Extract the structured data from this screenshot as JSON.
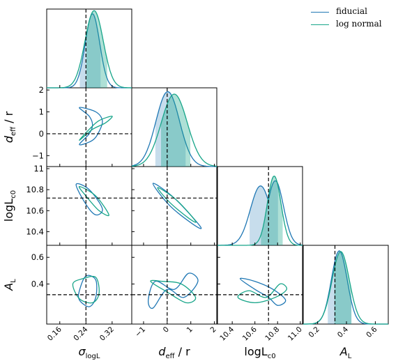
{
  "legend": {
    "items": [
      {
        "label": "fiducial",
        "color": "#1f77b4"
      },
      {
        "label": "log normal",
        "color": "#17a589"
      }
    ]
  },
  "chart_data": {
    "type": "triangle-plot",
    "params": [
      {
        "name": "sigma_logL",
        "label": "σlogL",
        "label_main": "σ",
        "label_sub": "logL",
        "lim": [
          0.12,
          0.38
        ],
        "ticks": [
          0.16,
          0.24,
          0.32
        ],
        "tick_labels": [
          "0.16",
          "0.24",
          "0.32"
        ],
        "truth": 0.24
      },
      {
        "name": "d_eff_r",
        "label": "deff / r",
        "label_main": "d",
        "label_sub": "eff",
        "label_suffix": " / r",
        "lim": [
          -1.5,
          2.1
        ],
        "ticks": [
          -1,
          0,
          1,
          2
        ],
        "tick_labels": [
          "−1",
          "0",
          "1",
          "2"
        ],
        "truth": 0
      },
      {
        "name": "logLc0",
        "label": "logLc0",
        "label_main": "logL",
        "label_sub": "c0",
        "lim": [
          10.27,
          11.02
        ],
        "ticks": [
          10.4,
          10.6,
          10.8,
          11.0
        ],
        "tick_labels": [
          "10.4",
          "10.6",
          "10.8",
          "11.0"
        ],
        "truth": 10.72
      },
      {
        "name": "A_L",
        "label": "AL",
        "label_main": "A",
        "label_sub": "L",
        "lim": [
          0.1,
          0.69
        ],
        "ticks": [
          0.2,
          0.4,
          0.6
        ],
        "tick_labels": [
          "0.2",
          "0.4",
          "0.6"
        ],
        "truth": 0.32
      }
    ],
    "y_tick_labels": {
      "d_eff_r": [
        "−1",
        "0",
        "1",
        "2"
      ],
      "logLc0": [
        "10.4",
        "10.6",
        "10.8",
        "11"
      ],
      "A_L": [
        "0.4",
        "0.6"
      ]
    },
    "series": [
      {
        "name": "fiducial",
        "color": "#1f77b4",
        "marginals": [
          {
            "center": 0.26,
            "width": 0.022,
            "peak": 0.94,
            "band": [
              0.22,
              0.285
            ]
          },
          {
            "center": 0.0,
            "width": 0.5,
            "peak": 0.95,
            "band": [
              -0.5,
              0.8
            ],
            "skew": 0.15
          },
          {
            "center": 10.65,
            "width": 0.09,
            "peak": 0.82,
            "band": [
              10.55,
              10.81
            ],
            "second": 10.78
          },
          {
            "center": 0.35,
            "width": 0.055,
            "peak": 0.93,
            "band": [
              0.27,
              0.44
            ]
          }
        ],
        "contours": [
          {
            "row": 1,
            "col": 0,
            "points": [
              [
                0.22,
                1.2
              ],
              [
                0.25,
                0.8
              ],
              [
                0.26,
                0.4
              ],
              [
                0.25,
                0.0
              ],
              [
                0.22,
                -0.5
              ],
              [
                0.26,
                -0.3
              ],
              [
                0.28,
                0.1
              ],
              [
                0.29,
                0.6
              ],
              [
                0.27,
                1.0
              ],
              [
                0.22,
                1.2
              ]
            ]
          },
          {
            "row": 2,
            "col": 0,
            "points": [
              [
                0.21,
                10.85
              ],
              [
                0.25,
                10.8
              ],
              [
                0.29,
                10.62
              ],
              [
                0.27,
                10.56
              ],
              [
                0.24,
                10.66
              ],
              [
                0.21,
                10.85
              ]
            ]
          },
          {
            "row": 2,
            "col": 1,
            "points": [
              [
                -0.6,
                10.86
              ],
              [
                0.3,
                10.72
              ],
              [
                1.4,
                10.45
              ],
              [
                1.1,
                10.47
              ],
              [
                0.1,
                10.65
              ],
              [
                -0.6,
                10.86
              ]
            ]
          },
          {
            "row": 3,
            "col": 0,
            "points": [
              [
                0.22,
                0.35
              ],
              [
                0.24,
                0.46
              ],
              [
                0.27,
                0.43
              ],
              [
                0.27,
                0.3
              ],
              [
                0.25,
                0.23
              ],
              [
                0.22,
                0.28
              ],
              [
                0.22,
                0.35
              ]
            ]
          },
          {
            "row": 3,
            "col": 1,
            "points": [
              [
                -0.8,
                0.28
              ],
              [
                -0.5,
                0.42
              ],
              [
                0.3,
                0.36
              ],
              [
                0.9,
                0.48
              ],
              [
                1.3,
                0.42
              ],
              [
                0.7,
                0.3
              ],
              [
                0.0,
                0.36
              ],
              [
                -0.6,
                0.22
              ],
              [
                -0.8,
                0.28
              ]
            ]
          },
          {
            "row": 3,
            "col": 2,
            "points": [
              [
                10.47,
                0.44
              ],
              [
                10.6,
                0.36
              ],
              [
                10.72,
                0.3
              ],
              [
                10.8,
                0.24
              ],
              [
                10.87,
                0.28
              ],
              [
                10.76,
                0.36
              ],
              [
                10.6,
                0.42
              ],
              [
                10.47,
                0.44
              ]
            ]
          }
        ]
      },
      {
        "name": "log normal",
        "color": "#17a589",
        "marginals": [
          {
            "center": 0.265,
            "width": 0.028,
            "peak": 0.98,
            "band": [
              0.24,
              0.305
            ]
          },
          {
            "center": 0.3,
            "width": 0.55,
            "peak": 0.92,
            "band": [
              -0.3,
              1.0
            ]
          },
          {
            "center": 10.77,
            "width": 0.06,
            "peak": 0.88,
            "band": [
              10.65,
              10.85
            ]
          },
          {
            "center": 0.36,
            "width": 0.06,
            "peak": 0.92,
            "band": [
              0.31,
              0.44
            ]
          }
        ],
        "contours": [
          {
            "row": 1,
            "col": 0,
            "points": [
              [
                0.22,
                -0.3
              ],
              [
                0.26,
                0.2
              ],
              [
                0.3,
                0.5
              ],
              [
                0.32,
                0.8
              ],
              [
                0.28,
                0.6
              ],
              [
                0.25,
                0.2
              ],
              [
                0.22,
                -0.3
              ]
            ]
          },
          {
            "row": 2,
            "col": 0,
            "points": [
              [
                0.22,
                10.83
              ],
              [
                0.27,
                10.74
              ],
              [
                0.31,
                10.56
              ],
              [
                0.28,
                10.6
              ],
              [
                0.24,
                10.74
              ],
              [
                0.22,
                10.83
              ]
            ]
          },
          {
            "row": 2,
            "col": 1,
            "points": [
              [
                -0.4,
                10.82
              ],
              [
                0.4,
                10.7
              ],
              [
                1.2,
                10.5
              ],
              [
                0.9,
                10.53
              ],
              [
                0.1,
                10.68
              ],
              [
                -0.4,
                10.82
              ]
            ]
          },
          {
            "row": 3,
            "col": 0,
            "points": [
              [
                0.2,
                0.4
              ],
              [
                0.23,
                0.44
              ],
              [
                0.27,
                0.45
              ],
              [
                0.28,
                0.33
              ],
              [
                0.26,
                0.26
              ],
              [
                0.22,
                0.29
              ],
              [
                0.2,
                0.4
              ]
            ]
          },
          {
            "row": 3,
            "col": 1,
            "points": [
              [
                -0.7,
                0.42
              ],
              [
                0.0,
                0.34
              ],
              [
                0.8,
                0.26
              ],
              [
                1.2,
                0.3
              ],
              [
                0.6,
                0.4
              ],
              [
                -0.2,
                0.42
              ],
              [
                -0.7,
                0.42
              ]
            ]
          },
          {
            "row": 3,
            "col": 2,
            "points": [
              [
                10.45,
                0.3
              ],
              [
                10.55,
                0.35
              ],
              [
                10.7,
                0.3
              ],
              [
                10.82,
                0.4
              ],
              [
                10.88,
                0.36
              ],
              [
                10.78,
                0.3
              ],
              [
                10.6,
                0.26
              ],
              [
                10.45,
                0.3
              ]
            ]
          }
        ]
      }
    ],
    "grid": false,
    "legend_position": "top-right",
    "truth_line_color": "#000000"
  }
}
